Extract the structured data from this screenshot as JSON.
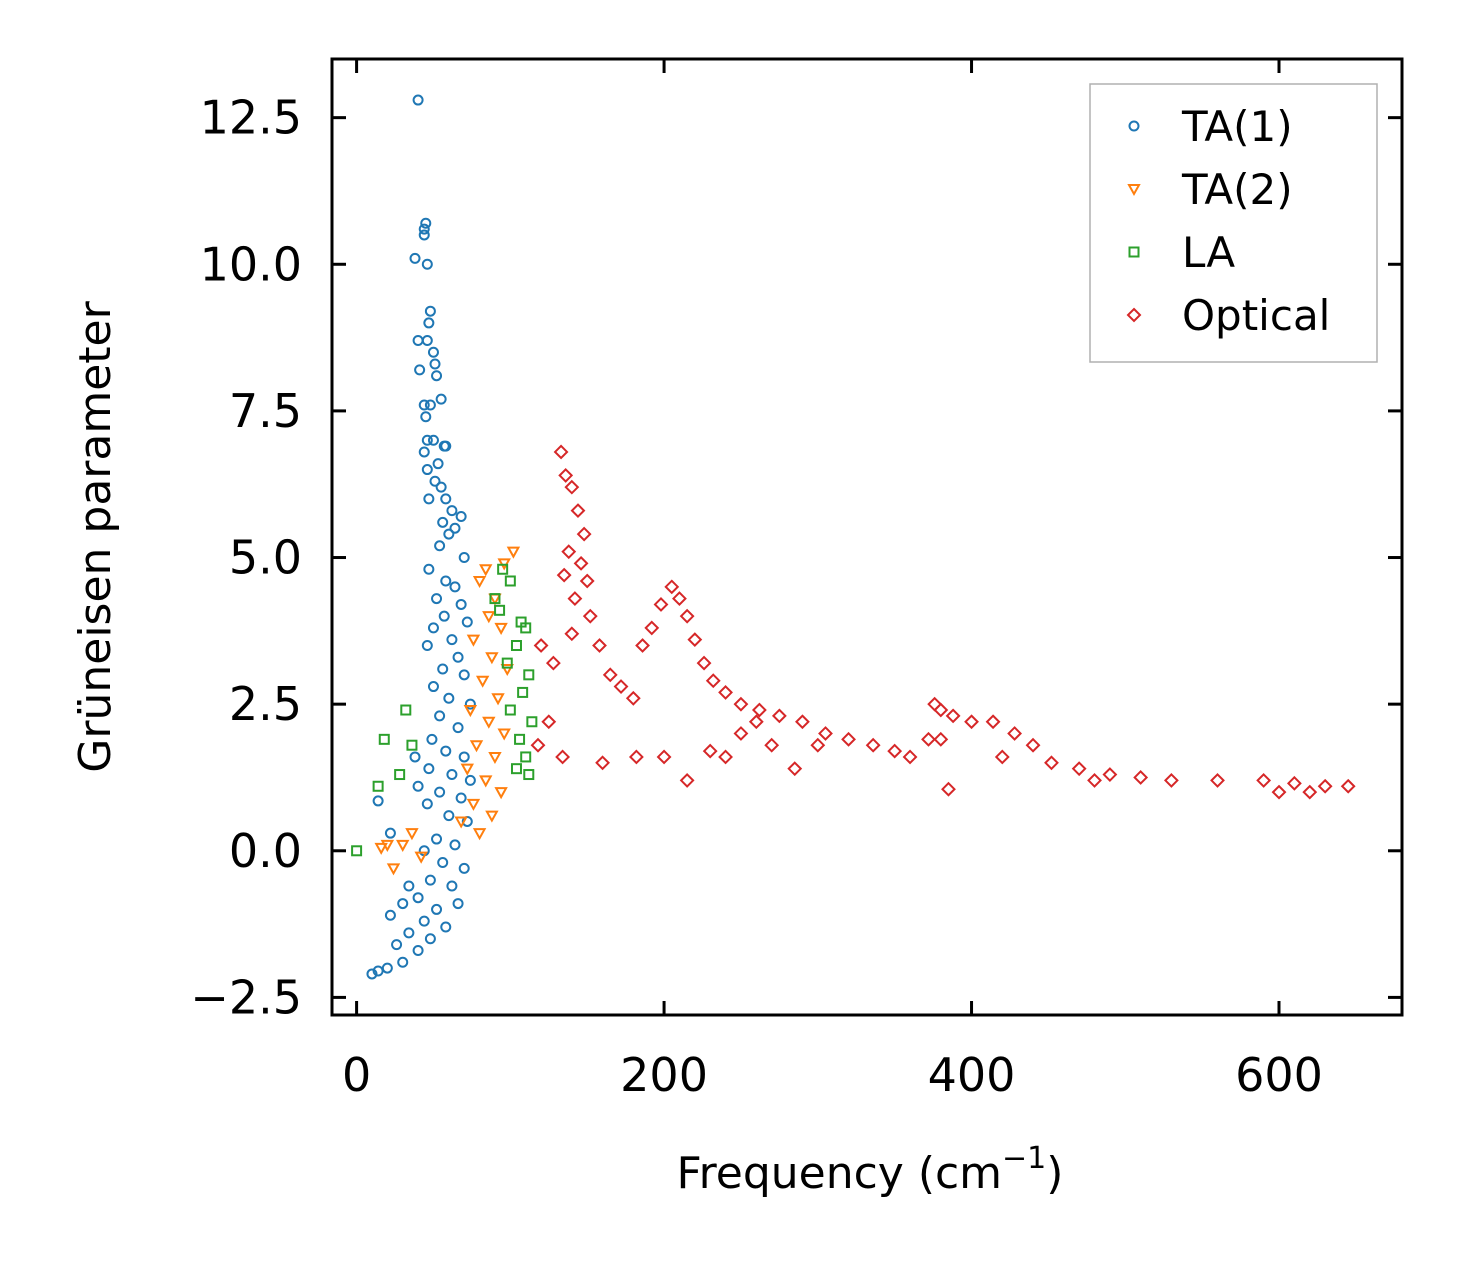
{
  "chart_data": {
    "type": "scatter",
    "title": "",
    "xlabel": "Frequency (cm",
    "xlabel_sup": "−1",
    "xlabel_end": ")",
    "ylabel": "Grüneisen parameter",
    "xlim": [
      -16,
      680
    ],
    "ylim": [
      -2.8,
      13.5
    ],
    "xticks": [
      0,
      200,
      400,
      600
    ],
    "xtick_labels": [
      "0",
      "200",
      "400",
      "600"
    ],
    "yticks": [
      -2.5,
      0.0,
      2.5,
      5.0,
      7.5,
      10.0,
      12.5
    ],
    "ytick_labels": [
      "−2.5",
      "0.0",
      "2.5",
      "5.0",
      "7.5",
      "10.0",
      "12.5"
    ],
    "legend_position": "top-right",
    "series": [
      {
        "name": "TA(1)",
        "marker": "circle",
        "color": "#1f77b4",
        "points": [
          [
            40,
            12.8
          ],
          [
            45,
            10.7
          ],
          [
            44,
            10.6
          ],
          [
            44,
            10.5
          ],
          [
            38,
            10.1
          ],
          [
            46,
            10.0
          ],
          [
            48,
            9.2
          ],
          [
            47,
            9.0
          ],
          [
            40,
            8.7
          ],
          [
            46,
            8.7
          ],
          [
            50,
            8.5
          ],
          [
            51,
            8.3
          ],
          [
            41,
            8.2
          ],
          [
            52,
            8.1
          ],
          [
            55,
            7.7
          ],
          [
            44,
            7.6
          ],
          [
            45,
            7.4
          ],
          [
            48,
            7.6
          ],
          [
            46,
            7.0
          ],
          [
            50,
            7.0
          ],
          [
            57,
            6.9
          ],
          [
            58,
            6.9
          ],
          [
            44,
            6.8
          ],
          [
            53,
            6.6
          ],
          [
            46,
            6.5
          ],
          [
            51,
            6.3
          ],
          [
            55,
            6.2
          ],
          [
            47,
            6.0
          ],
          [
            58,
            6.0
          ],
          [
            62,
            5.8
          ],
          [
            68,
            5.7
          ],
          [
            56,
            5.6
          ],
          [
            64,
            5.5
          ],
          [
            60,
            5.4
          ],
          [
            54,
            5.2
          ],
          [
            70,
            5.0
          ],
          [
            47,
            4.8
          ],
          [
            58,
            4.6
          ],
          [
            64,
            4.5
          ],
          [
            52,
            4.3
          ],
          [
            68,
            4.2
          ],
          [
            57,
            4.0
          ],
          [
            72,
            3.9
          ],
          [
            50,
            3.8
          ],
          [
            62,
            3.6
          ],
          [
            46,
            3.5
          ],
          [
            66,
            3.3
          ],
          [
            56,
            3.1
          ],
          [
            70,
            3.0
          ],
          [
            50,
            2.8
          ],
          [
            60,
            2.6
          ],
          [
            74,
            2.5
          ],
          [
            54,
            2.3
          ],
          [
            66,
            2.1
          ],
          [
            49,
            1.9
          ],
          [
            58,
            1.7
          ],
          [
            70,
            1.6
          ],
          [
            38,
            1.6
          ],
          [
            47,
            1.4
          ],
          [
            62,
            1.3
          ],
          [
            74,
            1.2
          ],
          [
            40,
            1.1
          ],
          [
            54,
            1.0
          ],
          [
            68,
            0.9
          ],
          [
            14,
            0.85
          ],
          [
            46,
            0.8
          ],
          [
            60,
            0.6
          ],
          [
            72,
            0.5
          ],
          [
            22,
            0.3
          ],
          [
            52,
            0.2
          ],
          [
            64,
            0.1
          ],
          [
            44,
            0.0
          ],
          [
            56,
            -0.2
          ],
          [
            70,
            -0.3
          ],
          [
            48,
            -0.5
          ],
          [
            62,
            -0.6
          ],
          [
            34,
            -0.6
          ],
          [
            40,
            -0.8
          ],
          [
            66,
            -0.9
          ],
          [
            30,
            -0.9
          ],
          [
            52,
            -1.0
          ],
          [
            22,
            -1.1
          ],
          [
            44,
            -1.2
          ],
          [
            58,
            -1.3
          ],
          [
            34,
            -1.4
          ],
          [
            48,
            -1.5
          ],
          [
            26,
            -1.6
          ],
          [
            40,
            -1.7
          ],
          [
            30,
            -1.9
          ],
          [
            20,
            -2.0
          ],
          [
            14,
            -2.05
          ],
          [
            10,
            -2.1
          ]
        ]
      },
      {
        "name": "TA(2)",
        "marker": "triangle",
        "color": "#ff7f0e",
        "points": [
          [
            102,
            5.1
          ],
          [
            96,
            4.9
          ],
          [
            84,
            4.8
          ],
          [
            80,
            4.6
          ],
          [
            90,
            4.3
          ],
          [
            86,
            4.0
          ],
          [
            94,
            3.8
          ],
          [
            76,
            3.6
          ],
          [
            88,
            3.3
          ],
          [
            98,
            3.1
          ],
          [
            82,
            2.9
          ],
          [
            92,
            2.6
          ],
          [
            74,
            2.4
          ],
          [
            86,
            2.2
          ],
          [
            96,
            2.0
          ],
          [
            78,
            1.8
          ],
          [
            90,
            1.6
          ],
          [
            72,
            1.4
          ],
          [
            84,
            1.2
          ],
          [
            94,
            1.0
          ],
          [
            76,
            0.8
          ],
          [
            88,
            0.6
          ],
          [
            68,
            0.5
          ],
          [
            80,
            0.3
          ],
          [
            36,
            0.3
          ],
          [
            30,
            0.1
          ],
          [
            20,
            0.1
          ],
          [
            16,
            0.05
          ],
          [
            42,
            -0.1
          ],
          [
            24,
            -0.3
          ]
        ]
      },
      {
        "name": "LA",
        "marker": "square",
        "color": "#2ca02c",
        "points": [
          [
            0,
            0.0
          ],
          [
            32,
            2.4
          ],
          [
            18,
            1.9
          ],
          [
            36,
            1.8
          ],
          [
            28,
            1.3
          ],
          [
            14,
            1.1
          ],
          [
            100,
            4.6
          ],
          [
            95,
            4.8
          ],
          [
            90,
            4.3
          ],
          [
            93,
            4.1
          ],
          [
            107,
            3.9
          ],
          [
            110,
            3.8
          ],
          [
            104,
            3.5
          ],
          [
            98,
            3.2
          ],
          [
            112,
            3.0
          ],
          [
            108,
            2.7
          ],
          [
            100,
            2.4
          ],
          [
            114,
            2.2
          ],
          [
            106,
            1.9
          ],
          [
            110,
            1.6
          ],
          [
            104,
            1.4
          ],
          [
            112,
            1.3
          ]
        ]
      },
      {
        "name": "Optical",
        "marker": "diamond",
        "color": "#d62728",
        "points": [
          [
            133,
            6.8
          ],
          [
            136,
            6.4
          ],
          [
            140,
            6.2
          ],
          [
            144,
            5.8
          ],
          [
            148,
            5.4
          ],
          [
            138,
            5.1
          ],
          [
            146,
            4.9
          ],
          [
            135,
            4.7
          ],
          [
            150,
            4.6
          ],
          [
            142,
            4.3
          ],
          [
            152,
            4.0
          ],
          [
            140,
            3.7
          ],
          [
            158,
            3.5
          ],
          [
            120,
            3.5
          ],
          [
            128,
            3.2
          ],
          [
            165,
            3.0
          ],
          [
            172,
            2.8
          ],
          [
            180,
            2.6
          ],
          [
            125,
            2.2
          ],
          [
            118,
            1.8
          ],
          [
            134,
            1.6
          ],
          [
            160,
            1.5
          ],
          [
            182,
            1.6
          ],
          [
            186,
            3.5
          ],
          [
            192,
            3.8
          ],
          [
            198,
            4.2
          ],
          [
            205,
            4.5
          ],
          [
            210,
            4.3
          ],
          [
            215,
            4.0
          ],
          [
            220,
            3.6
          ],
          [
            226,
            3.2
          ],
          [
            232,
            2.9
          ],
          [
            240,
            2.7
          ],
          [
            250,
            2.5
          ],
          [
            262,
            2.4
          ],
          [
            275,
            2.3
          ],
          [
            290,
            2.2
          ],
          [
            305,
            2.0
          ],
          [
            320,
            1.9
          ],
          [
            336,
            1.8
          ],
          [
            350,
            1.7
          ],
          [
            360,
            1.6
          ],
          [
            372,
            1.9
          ],
          [
            376,
            2.5
          ],
          [
            380,
            2.4
          ],
          [
            388,
            2.3
          ],
          [
            400,
            2.2
          ],
          [
            414,
            2.2
          ],
          [
            428,
            2.0
          ],
          [
            440,
            1.8
          ],
          [
            452,
            1.5
          ],
          [
            470,
            1.4
          ],
          [
            490,
            1.3
          ],
          [
            510,
            1.25
          ],
          [
            530,
            1.2
          ],
          [
            560,
            1.2
          ],
          [
            590,
            1.2
          ],
          [
            610,
            1.15
          ],
          [
            630,
            1.1
          ],
          [
            645,
            1.1
          ],
          [
            600,
            1.0
          ],
          [
            620,
            1.0
          ],
          [
            385,
            1.05
          ],
          [
            215,
            1.2
          ],
          [
            200,
            1.6
          ],
          [
            230,
            1.7
          ],
          [
            250,
            2.0
          ],
          [
            270,
            1.8
          ],
          [
            285,
            1.4
          ],
          [
            240,
            1.6
          ],
          [
            260,
            2.2
          ],
          [
            300,
            1.8
          ],
          [
            380,
            1.9
          ],
          [
            420,
            1.6
          ],
          [
            480,
            1.2
          ]
        ]
      }
    ]
  }
}
